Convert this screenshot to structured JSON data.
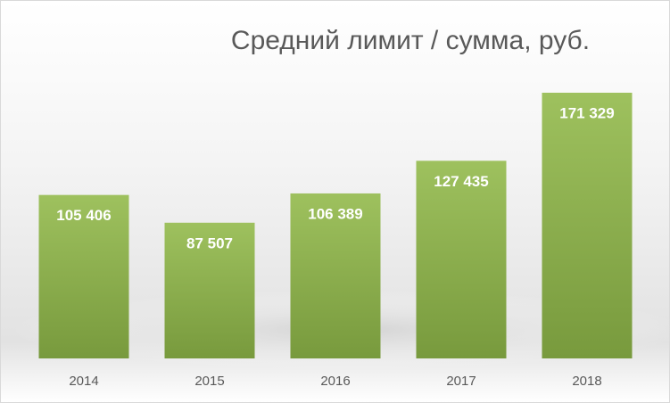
{
  "chart_data": {
    "type": "bar",
    "title": "Средний лимит / сумма, руб.",
    "categories": [
      "2014",
      "2015",
      "2016",
      "2017",
      "2018"
    ],
    "values": [
      105406,
      87507,
      106389,
      127435,
      171329
    ],
    "value_labels": [
      "105 406",
      "87 507",
      "106 389",
      "127 435",
      "171 329"
    ],
    "color": "#8fb04c"
  }
}
